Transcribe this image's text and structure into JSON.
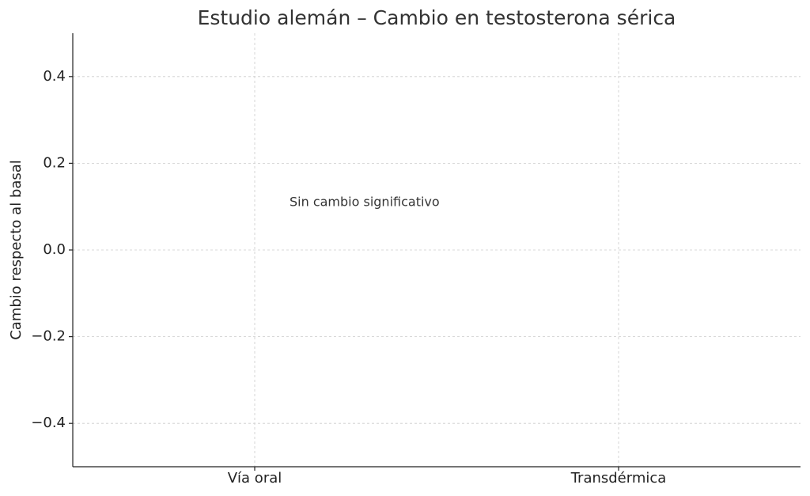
{
  "chart_data": {
    "type": "bar",
    "title": "Estudio alemán – Cambio en testosterona sérica",
    "y_label": "Cambio respecto al basal",
    "categories": [
      "Vía oral",
      "Transdérmica"
    ],
    "values": [
      0,
      0
    ],
    "color": "#4472c4",
    "annotation": "Sin cambio significativo",
    "ylim": [
      -0.5,
      0.5
    ],
    "yticks": [
      {
        "value": -0.4,
        "label": "−0.4"
      },
      {
        "value": -0.2,
        "label": "−0.2"
      },
      {
        "value": 0,
        "label": "0.0"
      },
      0.2,
      0.4
    ],
    "grid": true
  }
}
